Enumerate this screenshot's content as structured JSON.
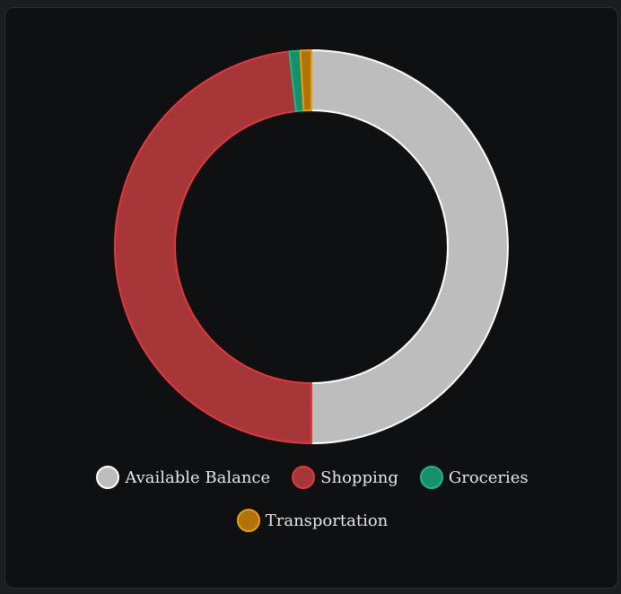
{
  "chart_data": {
    "type": "pie",
    "variant": "doughnut",
    "categories": [
      "Available Balance",
      "Shopping",
      "Groceries",
      "Transportation"
    ],
    "values": [
      50,
      48.2,
      0.9,
      0.9
    ],
    "colors": {
      "fill": [
        "#bcbdbc",
        "#a63638",
        "#16906b",
        "#b07406"
      ],
      "border": [
        "#ffffff",
        "#e0393e",
        "#1fb585",
        "#e69e12"
      ]
    },
    "legend": "bottom",
    "title": ""
  },
  "legend": {
    "items": [
      {
        "label": "Available Balance"
      },
      {
        "label": "Shopping"
      },
      {
        "label": "Groceries"
      },
      {
        "label": "Transportation"
      }
    ]
  }
}
